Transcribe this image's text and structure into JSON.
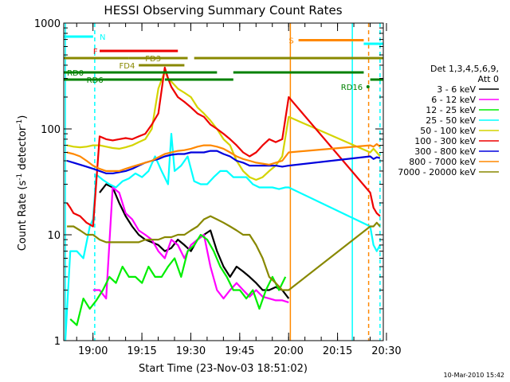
{
  "chart_data": {
    "type": "line",
    "title": "HESSI Observing Summary Count Rates",
    "xlabel": "Start Time (23-Nov-03 18:51:02)",
    "ylabel": "Count Rate (s⁻¹ detector⁻¹)",
    "ylabel_parts": {
      "main": "Count Rate (s",
      "sup1": "-1",
      "mid": " detector",
      "sup2": "-1",
      "end": ")"
    },
    "y_scale": "log",
    "ylim": [
      1,
      1000
    ],
    "xlim_minutes": [
      0,
      98
    ],
    "x_ticks": [
      "19:00",
      "19:15",
      "19:30",
      "19:45",
      "20:00",
      "20:15",
      "20:30"
    ],
    "y_ticks": [
      "1",
      "10",
      "100",
      "1000"
    ],
    "footer_date": "10-Mar-2010 15:42",
    "legend": {
      "header": [
        "Det 1,3,4,5,6,9,",
        "Att 0"
      ],
      "position": "right",
      "entries": [
        {
          "label": "3 - 6 keV",
          "color": "#000000"
        },
        {
          "label": "6 - 12 keV",
          "color": "#ff00ff"
        },
        {
          "label": "12 - 25 keV",
          "color": "#00ee00"
        },
        {
          "label": "25 - 50 keV",
          "color": "#00ffff"
        },
        {
          "label": "50 - 100 keV",
          "color": "#d4d400"
        },
        {
          "label": "100 - 300 keV",
          "color": "#ee0000"
        },
        {
          "label": "300 - 800 keV",
          "color": "#0000dd"
        },
        {
          "label": "800 - 7000 keV",
          "color": "#ff8800"
        },
        {
          "label": "7000 - 20000 keV",
          "color": "#888800"
        }
      ]
    },
    "series": [
      {
        "name": "3 - 6 keV",
        "color": "#000000",
        "x": [
          11,
          13,
          15,
          17,
          19,
          21,
          23,
          25,
          27,
          29,
          31,
          33,
          35,
          37,
          39,
          41,
          43,
          45,
          47,
          49,
          51,
          53,
          55,
          57,
          59,
          61,
          63,
          65,
          67,
          69
        ],
        "y": [
          25,
          30,
          28,
          20,
          15,
          12,
          10,
          9,
          8.5,
          8,
          7,
          7.5,
          9,
          8,
          7,
          9,
          10,
          11,
          7,
          5,
          4,
          5,
          4.5,
          4,
          3.5,
          3,
          3,
          3.2,
          3,
          2.5
        ]
      },
      {
        "name": "6 - 12 keV",
        "color": "#ff00ff",
        "x": [
          9,
          11,
          13,
          15,
          17,
          19,
          21,
          23,
          25,
          27,
          29,
          31,
          33,
          35,
          37,
          39,
          41,
          43,
          45,
          47,
          49,
          51,
          53,
          55,
          57,
          59,
          61,
          63,
          65,
          67,
          69
        ],
        "y": [
          3,
          3,
          2.5,
          28,
          25,
          16,
          14,
          11,
          10,
          9,
          7,
          6,
          9,
          8,
          6,
          8,
          9,
          10,
          5,
          3,
          2.5,
          3,
          3.5,
          3,
          2.6,
          3,
          2.6,
          2.5,
          2.4,
          2.4,
          2.3
        ]
      },
      {
        "name": "12 - 25 keV",
        "color": "#00ee00",
        "x": [
          2,
          4,
          6,
          8,
          10,
          12,
          14,
          16,
          18,
          20,
          22,
          24,
          26,
          28,
          30,
          32,
          34,
          36,
          38,
          40,
          42,
          44,
          46,
          48,
          50,
          52,
          54,
          56,
          58,
          60,
          62,
          64,
          66,
          68
        ],
        "y": [
          1.6,
          1.4,
          2.5,
          2,
          2.4,
          3,
          4,
          3.5,
          5,
          4,
          4,
          3.5,
          5,
          4,
          4,
          5,
          6,
          4,
          7,
          8,
          10,
          9,
          7,
          5,
          4,
          3,
          3,
          2.5,
          3,
          2,
          3,
          4,
          3,
          4
        ]
      },
      {
        "name": "25 - 50 keV",
        "color": "#00ffff",
        "x": [
          0.5,
          2,
          4,
          6,
          8,
          9,
          10,
          12,
          14,
          16,
          18,
          20,
          22,
          24,
          26,
          28,
          30,
          32,
          33,
          34,
          36,
          38,
          40,
          42,
          44,
          46,
          48,
          50,
          52,
          54,
          56,
          58,
          60,
          62,
          64,
          66,
          68,
          69,
          94,
          95,
          96,
          97
        ],
        "y": [
          1,
          7,
          7,
          6,
          12,
          14,
          37,
          33,
          30,
          28,
          32,
          34,
          38,
          35,
          40,
          55,
          40,
          30,
          90,
          40,
          45,
          55,
          32,
          30,
          30,
          35,
          40,
          40,
          35,
          35,
          35,
          30,
          28,
          28,
          28,
          27,
          28,
          28,
          12,
          8,
          7,
          8
        ]
      },
      {
        "name": "50 - 100 keV",
        "color": "#d4d400",
        "x": [
          1,
          3,
          5,
          7,
          9,
          11,
          13,
          15,
          17,
          19,
          21,
          23,
          25,
          27,
          29,
          31,
          32,
          33,
          35,
          37,
          39,
          41,
          43,
          45,
          47,
          49,
          51,
          53,
          55,
          57,
          59,
          61,
          63,
          65,
          67,
          69,
          94,
          95,
          96,
          97
        ],
        "y": [
          70,
          68,
          67,
          68,
          70,
          70,
          68,
          66,
          65,
          67,
          70,
          75,
          80,
          100,
          240,
          350,
          300,
          280,
          240,
          220,
          200,
          160,
          140,
          120,
          100,
          80,
          70,
          50,
          40,
          35,
          33,
          35,
          40,
          45,
          55,
          130,
          60,
          65,
          60,
          55
        ]
      },
      {
        "name": "100 - 300 keV",
        "color": "#ee0000",
        "x": [
          1,
          2,
          3,
          5,
          7,
          9,
          11,
          13,
          15,
          17,
          19,
          21,
          23,
          25,
          27,
          29,
          31,
          32,
          33,
          35,
          37,
          39,
          41,
          43,
          45,
          47,
          49,
          51,
          53,
          55,
          57,
          59,
          61,
          63,
          65,
          67,
          69,
          94,
          95,
          96,
          97
        ],
        "y": [
          20,
          18,
          16,
          15,
          13,
          12,
          85,
          80,
          78,
          80,
          82,
          80,
          85,
          90,
          110,
          140,
          380,
          300,
          250,
          200,
          180,
          160,
          140,
          130,
          110,
          100,
          90,
          80,
          70,
          60,
          55,
          60,
          70,
          80,
          75,
          80,
          200,
          25,
          18,
          16,
          15
        ]
      },
      {
        "name": "300 - 800 keV",
        "color": "#0000dd",
        "x": [
          1,
          3,
          5,
          7,
          9,
          11,
          13,
          15,
          17,
          19,
          21,
          23,
          25,
          27,
          29,
          31,
          33,
          35,
          37,
          39,
          41,
          43,
          45,
          47,
          49,
          51,
          53,
          55,
          57,
          59,
          61,
          63,
          65,
          67,
          69,
          94,
          95,
          96,
          97
        ],
        "y": [
          50,
          48,
          46,
          44,
          42,
          40,
          38,
          38,
          39,
          40,
          42,
          45,
          48,
          50,
          52,
          55,
          57,
          58,
          58,
          60,
          60,
          60,
          62,
          62,
          58,
          55,
          50,
          48,
          45,
          45,
          45,
          45,
          45,
          44,
          45,
          55,
          52,
          54,
          53
        ]
      },
      {
        "name": "800 - 7000 keV",
        "color": "#ff8800",
        "x": [
          1,
          3,
          5,
          7,
          9,
          11,
          13,
          15,
          17,
          19,
          21,
          23,
          25,
          27,
          29,
          31,
          33,
          35,
          37,
          39,
          41,
          43,
          45,
          47,
          49,
          51,
          53,
          55,
          57,
          59,
          61,
          63,
          65,
          67,
          69,
          94,
          95,
          96,
          97
        ],
        "y": [
          60,
          58,
          55,
          50,
          45,
          42,
          40,
          40,
          40,
          42,
          44,
          46,
          48,
          50,
          54,
          58,
          60,
          62,
          63,
          65,
          68,
          70,
          70,
          68,
          65,
          60,
          55,
          52,
          50,
          48,
          47,
          46,
          48,
          50,
          60,
          70,
          68,
          72,
          68
        ]
      },
      {
        "name": "7000 - 20000 keV",
        "color": "#888800",
        "x": [
          1,
          3,
          5,
          7,
          9,
          11,
          13,
          15,
          17,
          19,
          21,
          23,
          25,
          27,
          29,
          31,
          33,
          35,
          37,
          39,
          41,
          43,
          45,
          47,
          49,
          51,
          53,
          55,
          57,
          59,
          61,
          63,
          65,
          67,
          69,
          94,
          95,
          96,
          97
        ],
        "y": [
          12,
          12,
          11,
          10,
          10,
          9,
          8.5,
          8.5,
          8.5,
          8.5,
          8.5,
          8.5,
          9,
          9,
          9,
          9.5,
          9.5,
          10,
          10,
          11,
          12,
          14,
          15,
          14,
          13,
          12,
          11,
          10,
          10,
          8,
          6,
          4,
          3.5,
          3,
          3,
          12,
          12,
          13,
          12
        ]
      }
    ],
    "observing_flags": [
      {
        "label": "N",
        "color": "#00ffff",
        "row": 0,
        "segments": [
          [
            0,
            9
          ]
        ],
        "label_x": 11
      },
      {
        "label": "S",
        "color": "#ff8800",
        "row": 0.5,
        "segments": [
          [
            72,
            92
          ]
        ],
        "label_x": 69
      },
      {
        "label": "N",
        "color": "#00ffff",
        "row": 1,
        "segments": [
          [
            92,
            98
          ]
        ],
        "label_x": null
      },
      {
        "label": "F",
        "color": "#ee0000",
        "row": 2,
        "segments": [
          [
            11,
            35
          ]
        ],
        "label_x": 9
      },
      {
        "label": "FD3",
        "color": "#888800",
        "row": 3,
        "segments": [
          [
            0,
            20
          ],
          [
            20,
            38
          ],
          [
            40,
            98
          ]
        ],
        "label_x": 25
      },
      {
        "label": "FD4",
        "color": "#888800",
        "row": 4,
        "segments": [
          [
            23,
            37
          ]
        ],
        "label_x": 17
      },
      {
        "label": "RD0",
        "color": "#008000",
        "row": 5,
        "segments": [
          [
            0,
            47
          ],
          [
            52,
            92
          ]
        ],
        "label_x": 1
      },
      {
        "label": "RD6",
        "color": "#008000",
        "row": 6,
        "segments": [
          [
            0,
            30
          ],
          [
            31,
            52
          ],
          [
            94,
            98
          ]
        ],
        "label_x": 7
      },
      {
        "label": "RD16",
        "color": "#008000",
        "row": 7,
        "segments": [],
        "label_x": 85
      }
    ],
    "vertical_markers": [
      {
        "x": 0.5,
        "color": "#00ffff",
        "style": "solid"
      },
      {
        "x": 9.5,
        "color": "#00ffff",
        "style": "dashed"
      },
      {
        "x": 69.5,
        "color": "#ff8800",
        "style": "solid"
      },
      {
        "x": 88.5,
        "color": "#00ffff",
        "style": "solid"
      },
      {
        "x": 93.5,
        "color": "#ff8800",
        "style": "dashed"
      },
      {
        "x": 97,
        "color": "#00ffff",
        "style": "dashed"
      }
    ]
  }
}
